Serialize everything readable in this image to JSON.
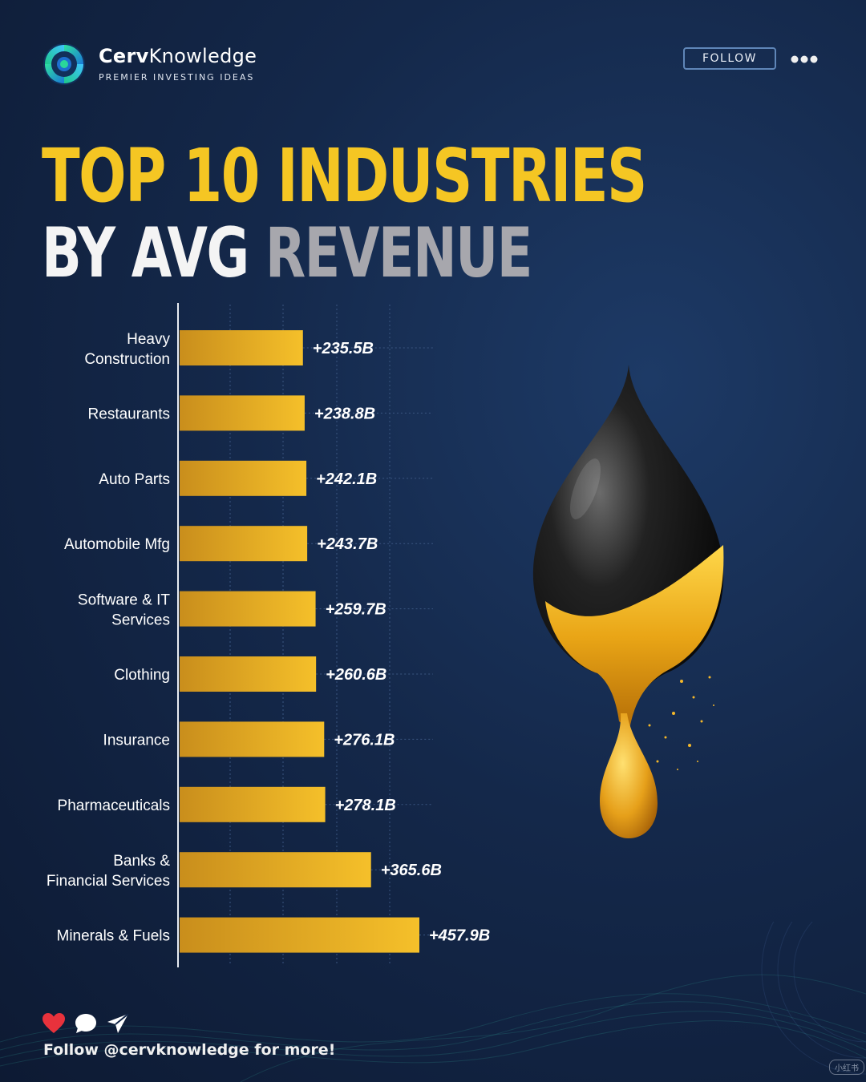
{
  "brand": {
    "name_bold": "Cerv",
    "name_rest": "Knowledge",
    "tagline": "PREMIER INVESTING IDEAS",
    "follow_label": "FOLLOW",
    "more_icon": "ellipsis-icon",
    "logo_icon": "swirl-logo-icon"
  },
  "title": {
    "line1": "TOP 10 INDUSTRIES",
    "line2_white": "BY AVG",
    "line2_gray": "REVENUE"
  },
  "chart_data": {
    "type": "bar",
    "orientation": "horizontal",
    "title": "TOP 10 INDUSTRIES BY AVG REVENUE",
    "unit": "B",
    "categories": [
      [
        "Heavy",
        "Construction"
      ],
      [
        "Restaurants"
      ],
      [
        "Auto Parts"
      ],
      [
        "Automobile Mfg"
      ],
      [
        "Software &  IT",
        "Services"
      ],
      [
        "Clothing"
      ],
      [
        "Insurance"
      ],
      [
        "Pharmaceuticals"
      ],
      [
        "Banks &",
        "Financial Services"
      ],
      [
        "Minerals & Fuels"
      ]
    ],
    "values": [
      235.5,
      238.8,
      242.1,
      243.7,
      259.7,
      260.6,
      276.1,
      278.1,
      365.6,
      457.9
    ],
    "data_labels": [
      "+235.5B",
      "+238.8B",
      "+242.1B",
      "+243.7B",
      "+259.7B",
      "+260.6B",
      "+276.1B",
      "+278.1B",
      "+365.6B",
      "+457.9B"
    ],
    "xlim": [
      0,
      480
    ],
    "grid": true,
    "bar_color_start": "#f5c02a",
    "bar_color_end": "#c98e1c"
  },
  "footer": {
    "icons": [
      "heart-icon",
      "comment-icon",
      "send-icon"
    ],
    "text": "Follow @cervknowledge for more!",
    "watermark": "小红书"
  },
  "colors": {
    "accent": "#f5c623",
    "title_white": "#f4f4f4",
    "title_gray": "#a7a7ad",
    "heart": "#e8323c"
  }
}
